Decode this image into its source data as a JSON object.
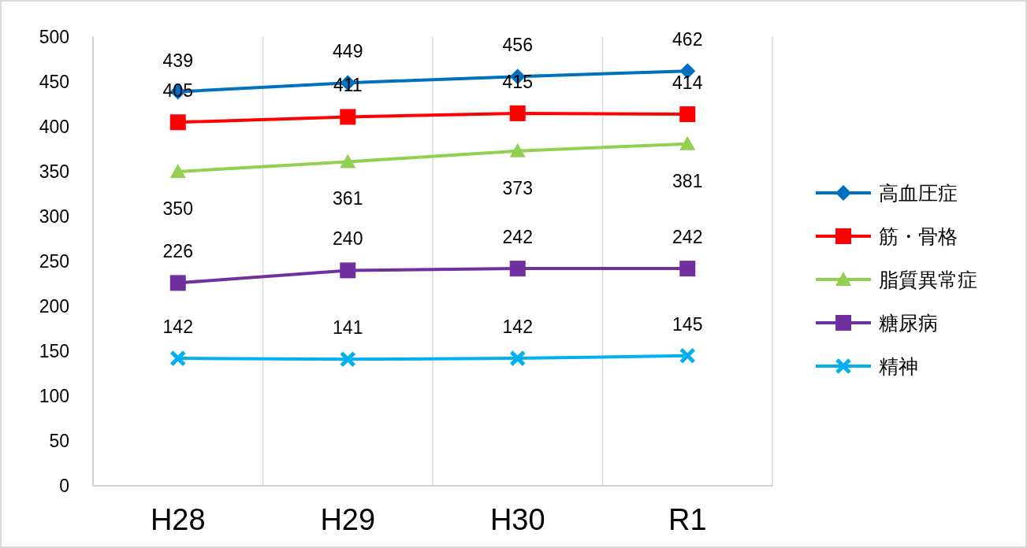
{
  "chart_data": {
    "type": "line",
    "categories": [
      "H28",
      "H29",
      "H30",
      "R1"
    ],
    "series": [
      {
        "name": "高血圧症",
        "color": "#0070c0",
        "marker": "diamond",
        "values": [
          439,
          449,
          456,
          462
        ]
      },
      {
        "name": "筋・骨格",
        "color": "#ff0000",
        "marker": "square",
        "values": [
          405,
          411,
          415,
          414
        ]
      },
      {
        "name": "脂質異常症",
        "color": "#92d050",
        "marker": "triangle",
        "values": [
          350,
          361,
          373,
          381
        ]
      },
      {
        "name": "糖尿病",
        "color": "#7030a0",
        "marker": "square",
        "values": [
          226,
          240,
          242,
          242
        ]
      },
      {
        "name": "精神",
        "color": "#00b0f0",
        "marker": "cross",
        "values": [
          142,
          141,
          142,
          145
        ]
      }
    ],
    "ylim": [
      0,
      500
    ],
    "yticks": [
      0,
      50,
      100,
      150,
      200,
      250,
      300,
      350,
      400,
      450,
      500
    ],
    "grid": "x",
    "legend": "right",
    "data_labels": true
  }
}
